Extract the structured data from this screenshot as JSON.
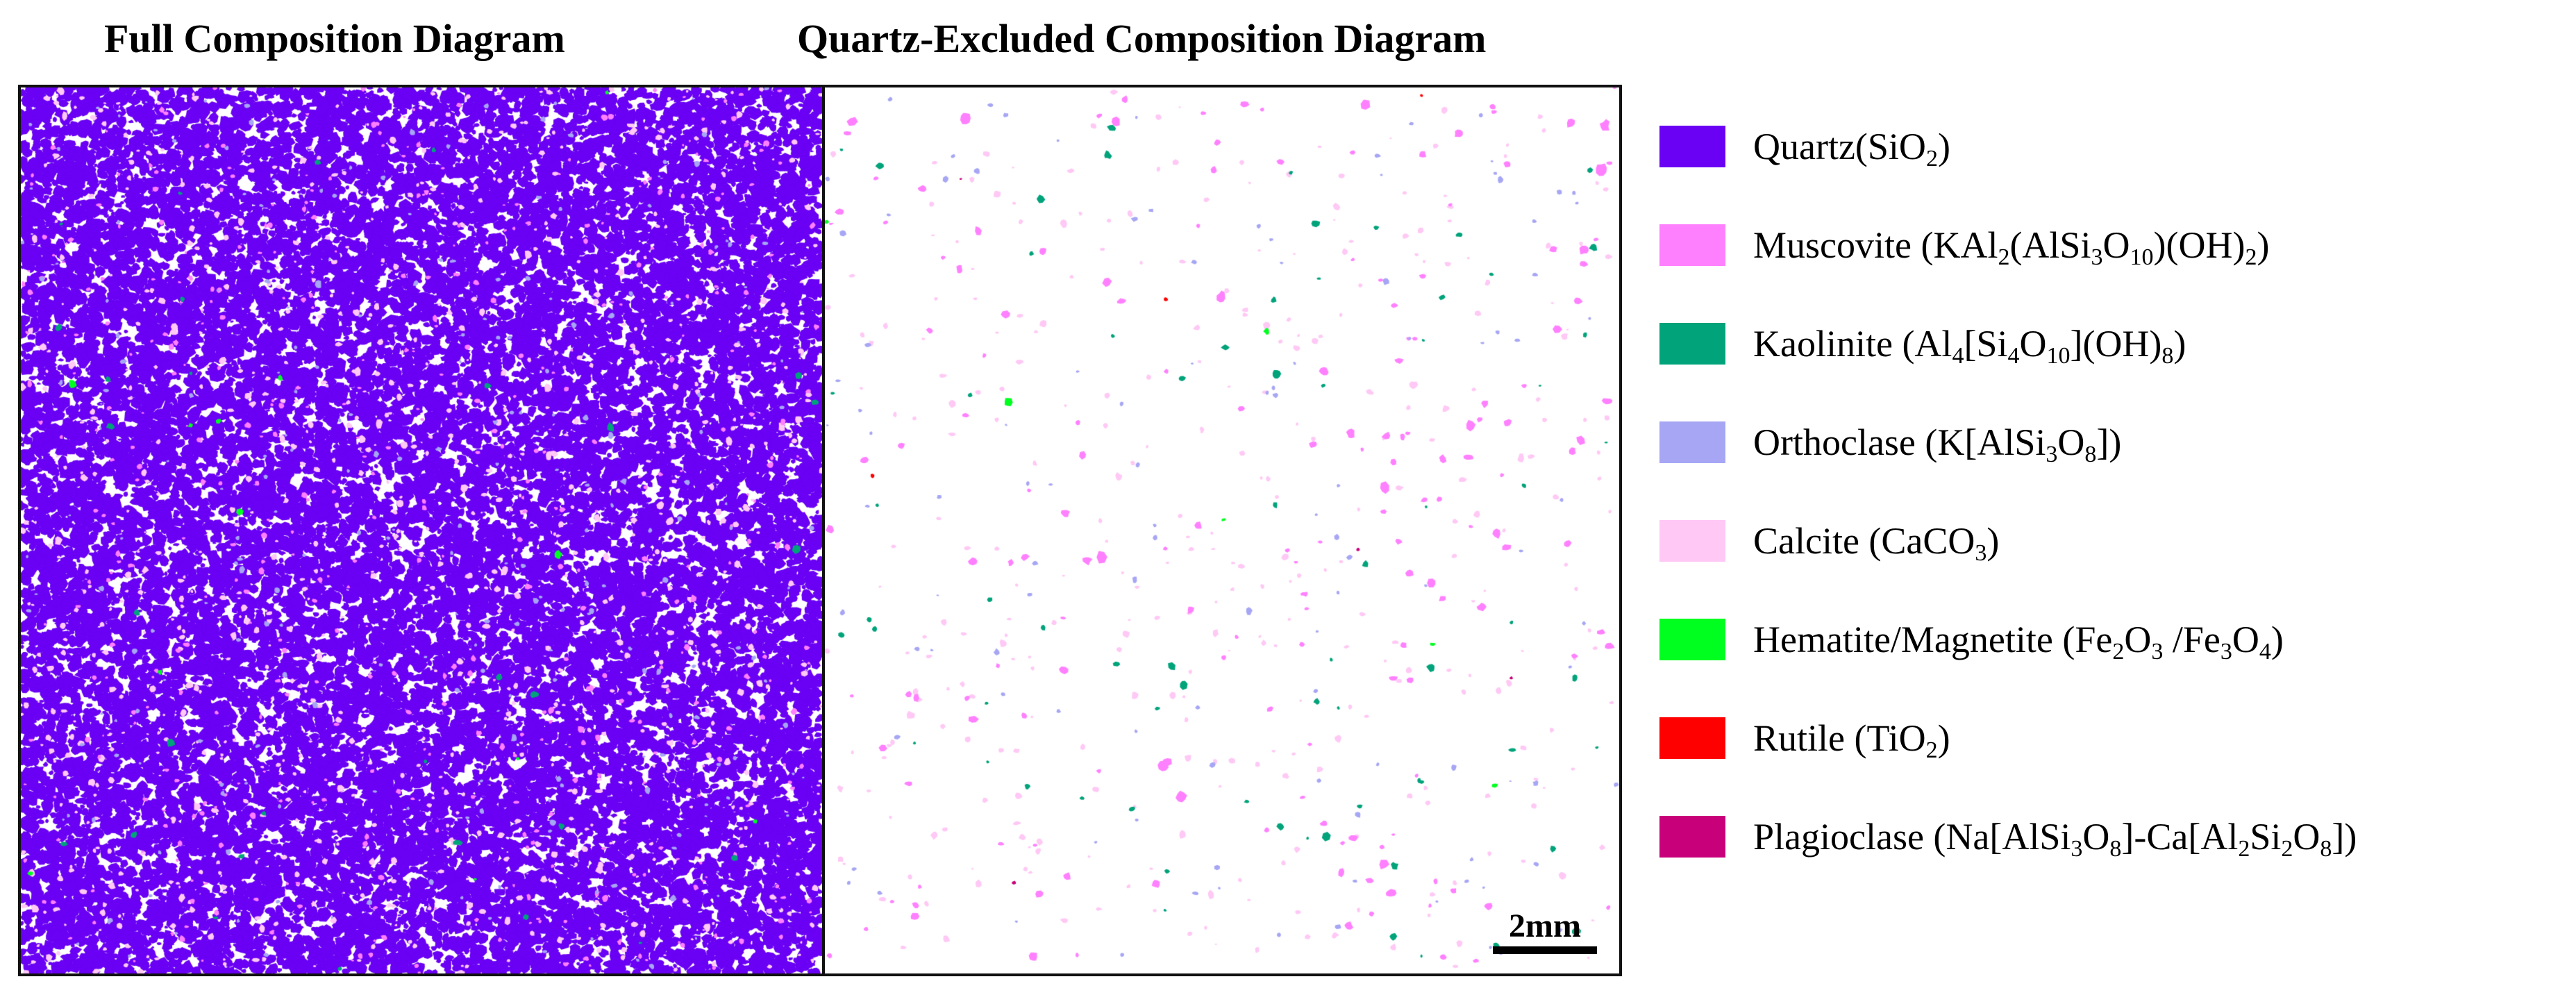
{
  "titles": {
    "full": "Full Composition Diagram",
    "excluded": "Quartz-Excluded  Composition Diagram"
  },
  "scalebar": {
    "label": "2mm"
  },
  "legend": [
    {
      "mineral": "Quartz",
      "parts": [
        [
          "Quartz(SiO",
          ""
        ],
        [
          "2",
          "sub"
        ],
        [
          ")",
          ""
        ]
      ],
      "color": "#6a00f4"
    },
    {
      "mineral": "Muscovite",
      "parts": [
        [
          "Muscovite (KAl",
          ""
        ],
        [
          "2",
          "sub"
        ],
        [
          "(AlSi",
          ""
        ],
        [
          "3",
          "sub"
        ],
        [
          "O",
          ""
        ],
        [
          "10",
          "sub"
        ],
        [
          ")(OH)",
          ""
        ],
        [
          "2",
          "sub"
        ],
        [
          ")",
          ""
        ]
      ],
      "color": "#ff80ff"
    },
    {
      "mineral": "Kaolinite",
      "parts": [
        [
          "Kaolinite (Al",
          ""
        ],
        [
          "4",
          "sub"
        ],
        [
          "[Si",
          ""
        ],
        [
          "4",
          "sub"
        ],
        [
          "O",
          ""
        ],
        [
          "10",
          "sub"
        ],
        [
          "](OH)",
          ""
        ],
        [
          "8",
          "sub"
        ],
        [
          ")",
          ""
        ]
      ],
      "color": "#00a37a"
    },
    {
      "mineral": "Orthoclase",
      "parts": [
        [
          "Orthoclase (K[AlSi",
          ""
        ],
        [
          "3",
          "sub"
        ],
        [
          "O",
          ""
        ],
        [
          "8",
          "sub"
        ],
        [
          "])",
          ""
        ]
      ],
      "color": "#a6a6f5"
    },
    {
      "mineral": "Calcite",
      "parts": [
        [
          "Calcite (CaCO",
          ""
        ],
        [
          "3",
          "sub"
        ],
        [
          ")",
          ""
        ]
      ],
      "color": "#ffc8f5"
    },
    {
      "mineral": "Hematite/Magnetite",
      "parts": [
        [
          "Hematite/Magnetite (Fe",
          ""
        ],
        [
          "2",
          "sub"
        ],
        [
          "O",
          ""
        ],
        [
          "3",
          "sub"
        ],
        [
          " /Fe",
          ""
        ],
        [
          "3",
          "sub"
        ],
        [
          "O",
          ""
        ],
        [
          "4",
          "sub"
        ],
        [
          ")",
          ""
        ]
      ],
      "color": "#00ff1e"
    },
    {
      "mineral": "Rutile",
      "parts": [
        [
          "Rutile (TiO",
          ""
        ],
        [
          "2",
          "sub"
        ],
        [
          ")",
          ""
        ]
      ],
      "color": "#ff0000"
    },
    {
      "mineral": "Plagioclase",
      "parts": [
        [
          "Plagioclase (Na[AlSi",
          ""
        ],
        [
          "3",
          "sub"
        ],
        [
          "O",
          ""
        ],
        [
          "8",
          "sub"
        ],
        [
          "]-Ca[Al",
          ""
        ],
        [
          "2",
          "sub"
        ],
        [
          "Si",
          ""
        ],
        [
          "2",
          "sub"
        ],
        [
          "O",
          ""
        ],
        [
          "8",
          "sub"
        ],
        [
          "])",
          ""
        ]
      ],
      "color": "#c8007a"
    }
  ],
  "colors": {
    "quartz": "#6a00f4",
    "muscovite": "#ff80ff",
    "kaolinite": "#00a37a",
    "orthoclase": "#a6a6f5",
    "calcite": "#ffc8f5",
    "hematite": "#00ff1e",
    "rutile": "#ff0000",
    "plagioclase": "#c8007a",
    "frame": "#111111"
  }
}
